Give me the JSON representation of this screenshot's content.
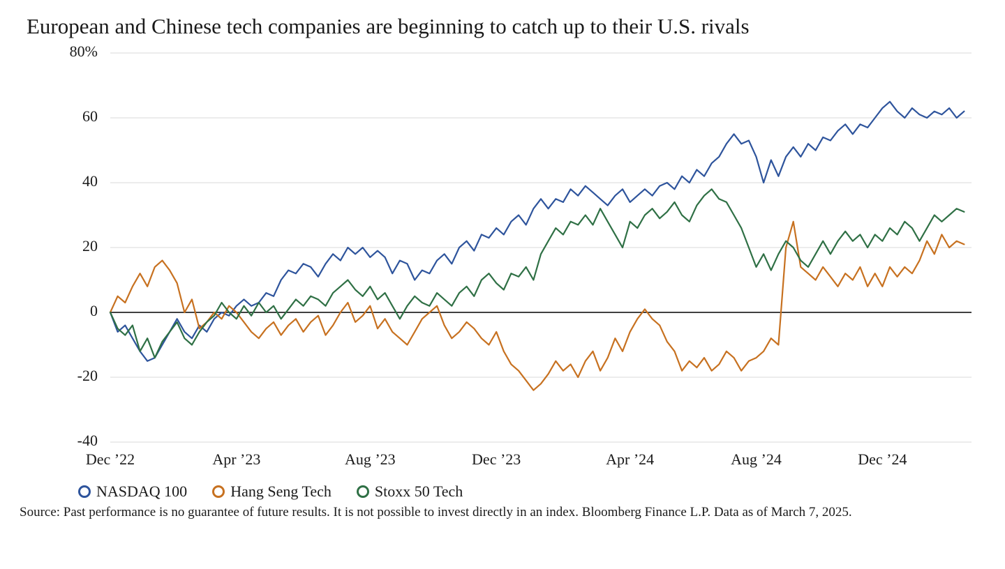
{
  "chart": {
    "type": "line",
    "title": "European and Chinese tech companies are beginning to catch up to their U.S. rivals",
    "title_fontsize": 31,
    "background_color": "#ffffff",
    "grid_color": "#d9d9d9",
    "zero_line_color": "#000000",
    "y_axis": {
      "min": -40,
      "max": 80,
      "tick_step": 20,
      "ticks": [
        -40,
        -20,
        0,
        20,
        40,
        60,
        80
      ],
      "tick_labels": [
        "-40",
        "-20",
        "0",
        "20",
        "40",
        "60",
        "80%"
      ],
      "label_fontsize": 22
    },
    "x_axis": {
      "min": 0,
      "max": 116,
      "ticks": [
        0,
        17,
        35,
        52,
        70,
        87,
        104
      ],
      "tick_labels": [
        "Dec ’22",
        "Apr ’23",
        "Aug ’23",
        "Dec ’23",
        "Apr ’24",
        "Aug ’24",
        "Dec ’24"
      ],
      "label_fontsize": 22
    },
    "line_width": 2.2,
    "series": [
      {
        "name": "NASDAQ 100",
        "color": "#2e549c",
        "data": [
          0,
          -6,
          -4,
          -8,
          -12,
          -15,
          -14,
          -10,
          -6,
          -2,
          -6,
          -8,
          -4,
          -6,
          -2,
          0,
          -1,
          2,
          4,
          2,
          3,
          6,
          5,
          10,
          13,
          12,
          15,
          14,
          11,
          15,
          18,
          16,
          20,
          18,
          20,
          17,
          19,
          17,
          12,
          16,
          15,
          10,
          13,
          12,
          16,
          18,
          15,
          20,
          22,
          19,
          24,
          23,
          26,
          24,
          28,
          30,
          27,
          32,
          35,
          32,
          35,
          34,
          38,
          36,
          39,
          37,
          35,
          33,
          36,
          38,
          34,
          36,
          38,
          36,
          39,
          40,
          38,
          42,
          40,
          44,
          42,
          46,
          48,
          52,
          55,
          52,
          53,
          48,
          40,
          47,
          42,
          48,
          51,
          48,
          52,
          50,
          54,
          53,
          56,
          58,
          55,
          58,
          57,
          60,
          63,
          65,
          62,
          60,
          63,
          61,
          60,
          62,
          61,
          63,
          60,
          62
        ]
      },
      {
        "name": "Hang Seng Tech",
        "color": "#c77120",
        "data": [
          0,
          5,
          3,
          8,
          12,
          8,
          14,
          16,
          13,
          9,
          0,
          4,
          -5,
          -3,
          0,
          -2,
          2,
          0,
          -3,
          -6,
          -8,
          -5,
          -3,
          -7,
          -4,
          -2,
          -6,
          -3,
          -1,
          -7,
          -4,
          0,
          3,
          -3,
          -1,
          2,
          -5,
          -2,
          -6,
          -8,
          -10,
          -6,
          -2,
          0,
          2,
          -4,
          -8,
          -6,
          -3,
          -5,
          -8,
          -10,
          -6,
          -12,
          -16,
          -18,
          -21,
          -24,
          -22,
          -19,
          -15,
          -18,
          -16,
          -20,
          -15,
          -12,
          -18,
          -14,
          -8,
          -12,
          -6,
          -2,
          1,
          -2,
          -4,
          -9,
          -12,
          -18,
          -15,
          -17,
          -14,
          -18,
          -16,
          -12,
          -14,
          -18,
          -15,
          -14,
          -12,
          -8,
          -10,
          20,
          28,
          14,
          12,
          10,
          14,
          11,
          8,
          12,
          10,
          14,
          8,
          12,
          8,
          14,
          11,
          14,
          12,
          16,
          22,
          18,
          24,
          20,
          22,
          21
        ]
      },
      {
        "name": "Stoxx 50 Tech",
        "color": "#2f7045",
        "data": [
          0,
          -5,
          -7,
          -4,
          -12,
          -8,
          -14,
          -9,
          -6,
          -3,
          -8,
          -10,
          -6,
          -3,
          -1,
          3,
          0,
          -2,
          2,
          -1,
          3,
          0,
          2,
          -2,
          1,
          4,
          2,
          5,
          4,
          2,
          6,
          8,
          10,
          7,
          5,
          8,
          4,
          6,
          2,
          -2,
          2,
          5,
          3,
          2,
          6,
          4,
          2,
          6,
          8,
          5,
          10,
          12,
          9,
          7,
          12,
          11,
          14,
          10,
          18,
          22,
          26,
          24,
          28,
          27,
          30,
          27,
          32,
          28,
          24,
          20,
          28,
          26,
          30,
          32,
          29,
          31,
          34,
          30,
          28,
          33,
          36,
          38,
          35,
          34,
          30,
          26,
          20,
          14,
          18,
          13,
          18,
          22,
          20,
          16,
          14,
          18,
          22,
          18,
          22,
          25,
          22,
          24,
          20,
          24,
          22,
          26,
          24,
          28,
          26,
          22,
          26,
          30,
          28,
          30,
          32,
          31
        ]
      }
    ],
    "legend": {
      "items": [
        "NASDAQ 100",
        "Hang Seng Tech",
        "Stoxx 50 Tech"
      ],
      "marker_style": "hollow-circle",
      "fontsize": 22
    },
    "source": "Source: Past performance is no guarantee of future results. It is not possible to invest directly in an index. Bloomberg Finance L.P. Data as of March 7, 2025.",
    "source_fontsize": 19
  }
}
